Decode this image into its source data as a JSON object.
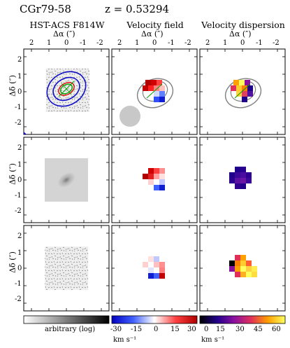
{
  "object_name": "CGr79-58",
  "redshift": "z = 0.53294",
  "columns": [
    {
      "title": "HST-ACS F814W",
      "xlabel": "Δα (″)"
    },
    {
      "title": "Velocity field",
      "xlabel": "Δα (″)"
    },
    {
      "title": "Velocity dispersion",
      "xlabel": "Δα (″)"
    }
  ],
  "ylabel": "Δδ (″)",
  "x_ticks": [
    "2",
    "1",
    "0",
    "-1",
    "-2"
  ],
  "y_ticks": [
    "2",
    "1",
    "0",
    "-1",
    "-2"
  ],
  "colorbars": [
    {
      "label": "arbitrary (log)",
      "ticks": []
    },
    {
      "label": "km s⁻¹",
      "ticks": [
        "-30",
        "-15",
        "0",
        "15",
        "30"
      ]
    },
    {
      "label": "km s⁻¹",
      "ticks": [
        "0",
        "15",
        "30",
        "45",
        "60"
      ]
    }
  ],
  "colors": {
    "contour_blue": "#1010c8",
    "contour_green": "#00a000",
    "contour_red": "#e00000",
    "psf_gray": "#c8c8c8"
  }
}
